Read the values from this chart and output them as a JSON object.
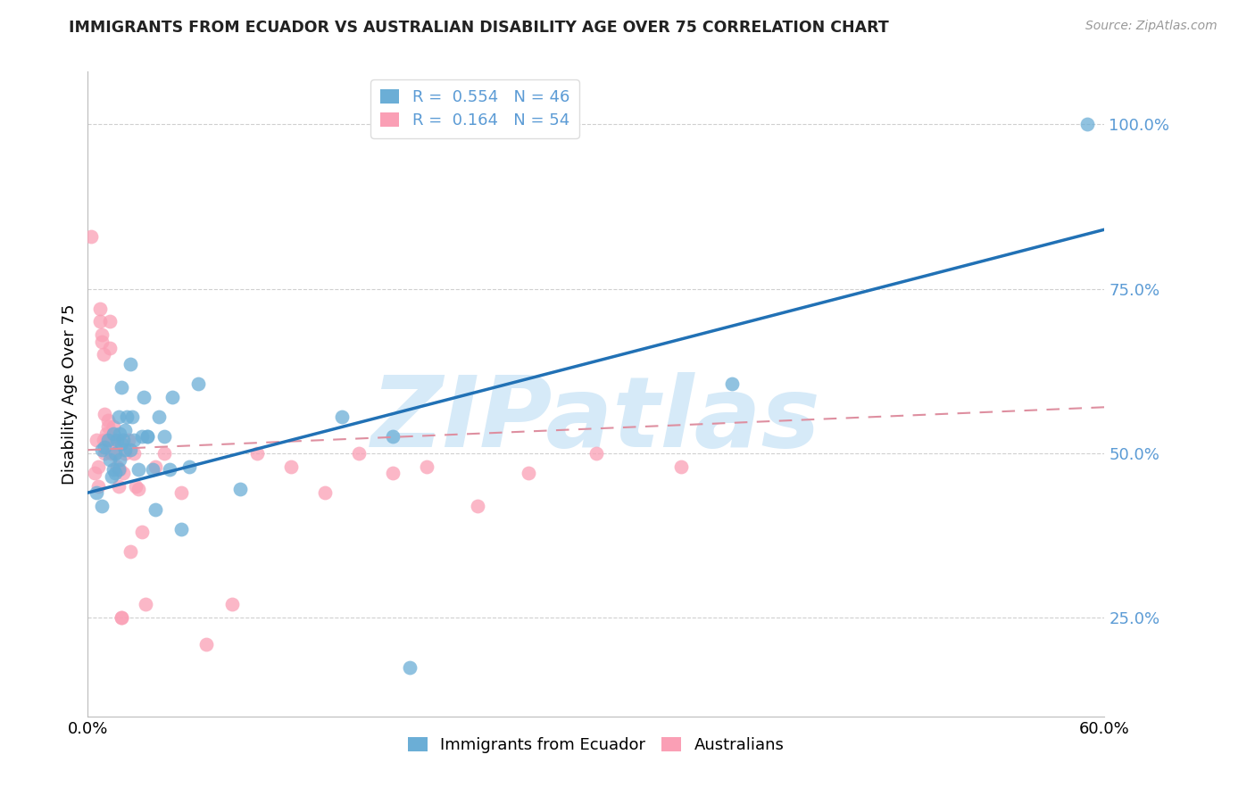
{
  "title": "IMMIGRANTS FROM ECUADOR VS AUSTRALIAN DISABILITY AGE OVER 75 CORRELATION CHART",
  "source": "Source: ZipAtlas.com",
  "ylabel": "Disability Age Over 75",
  "ytick_labels": [
    "25.0%",
    "50.0%",
    "75.0%",
    "100.0%"
  ],
  "ytick_values": [
    0.25,
    0.5,
    0.75,
    1.0
  ],
  "xlim": [
    0.0,
    0.6
  ],
  "ylim": [
    0.1,
    1.08
  ],
  "watermark": "ZIPatlas",
  "legend_blue_R": "0.554",
  "legend_blue_N": "46",
  "legend_pink_R": "0.164",
  "legend_pink_N": "54",
  "blue_scatter_x": [
    0.005,
    0.008,
    0.008,
    0.01,
    0.012,
    0.013,
    0.014,
    0.015,
    0.015,
    0.016,
    0.016,
    0.017,
    0.018,
    0.018,
    0.019,
    0.019,
    0.02,
    0.02,
    0.021,
    0.022,
    0.022,
    0.023,
    0.025,
    0.025,
    0.026,
    0.027,
    0.03,
    0.032,
    0.033,
    0.035,
    0.035,
    0.038,
    0.04,
    0.042,
    0.045,
    0.048,
    0.05,
    0.055,
    0.06,
    0.065,
    0.09,
    0.15,
    0.18,
    0.19,
    0.38,
    0.59
  ],
  "blue_scatter_y": [
    0.44,
    0.42,
    0.505,
    0.51,
    0.52,
    0.49,
    0.465,
    0.475,
    0.53,
    0.47,
    0.5,
    0.52,
    0.555,
    0.475,
    0.53,
    0.49,
    0.515,
    0.6,
    0.52,
    0.505,
    0.535,
    0.555,
    0.635,
    0.505,
    0.555,
    0.52,
    0.475,
    0.525,
    0.585,
    0.525,
    0.525,
    0.475,
    0.415,
    0.555,
    0.525,
    0.475,
    0.585,
    0.385,
    0.48,
    0.605,
    0.445,
    0.555,
    0.525,
    0.175,
    0.605,
    1.0
  ],
  "pink_scatter_x": [
    0.002,
    0.004,
    0.005,
    0.006,
    0.006,
    0.007,
    0.007,
    0.008,
    0.008,
    0.009,
    0.009,
    0.01,
    0.01,
    0.011,
    0.011,
    0.012,
    0.012,
    0.013,
    0.013,
    0.014,
    0.014,
    0.015,
    0.015,
    0.016,
    0.016,
    0.017,
    0.018,
    0.019,
    0.02,
    0.02,
    0.021,
    0.022,
    0.024,
    0.025,
    0.027,
    0.028,
    0.03,
    0.032,
    0.034,
    0.04,
    0.045,
    0.055,
    0.07,
    0.085,
    0.1,
    0.12,
    0.14,
    0.16,
    0.18,
    0.2,
    0.23,
    0.26,
    0.3,
    0.35
  ],
  "pink_scatter_y": [
    0.83,
    0.47,
    0.52,
    0.45,
    0.48,
    0.7,
    0.72,
    0.67,
    0.68,
    0.65,
    0.52,
    0.5,
    0.56,
    0.52,
    0.53,
    0.55,
    0.54,
    0.66,
    0.7,
    0.5,
    0.52,
    0.52,
    0.54,
    0.5,
    0.52,
    0.48,
    0.45,
    0.475,
    0.25,
    0.25,
    0.47,
    0.5,
    0.52,
    0.35,
    0.5,
    0.45,
    0.445,
    0.38,
    0.27,
    0.48,
    0.5,
    0.44,
    0.21,
    0.27,
    0.5,
    0.48,
    0.44,
    0.5,
    0.47,
    0.48,
    0.42,
    0.47,
    0.5,
    0.48
  ],
  "blue_line_x": [
    0.0,
    0.6
  ],
  "blue_line_y": [
    0.44,
    0.84
  ],
  "pink_line_x": [
    0.0,
    0.6
  ],
  "pink_line_y": [
    0.505,
    0.57
  ],
  "blue_color": "#6baed6",
  "pink_color": "#fa9fb5",
  "blue_line_color": "#2171b5",
  "pink_line_color": "#de8fa0",
  "grid_color": "#d0d0d0",
  "title_color": "#222222",
  "yticklabel_color": "#5b9bd5",
  "watermark_color": "#d6eaf8"
}
